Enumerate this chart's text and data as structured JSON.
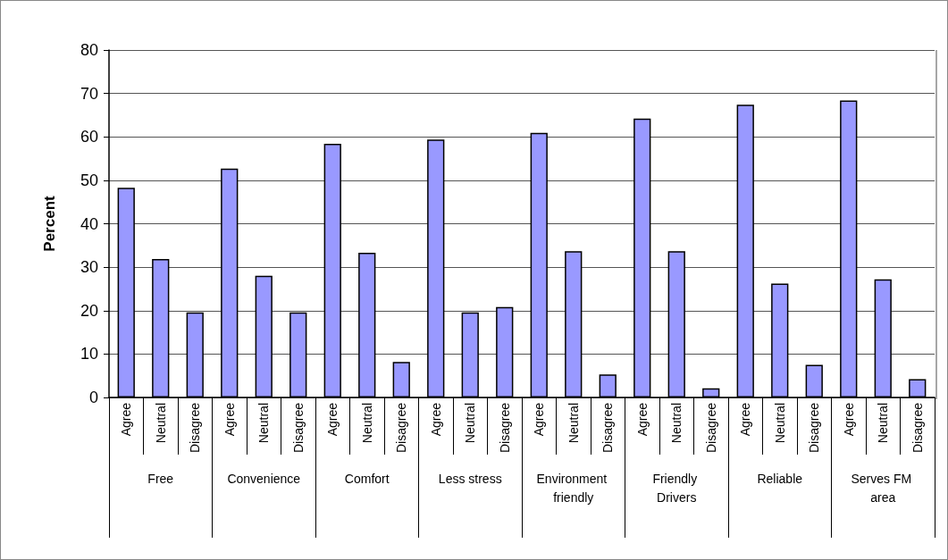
{
  "chart_data": {
    "type": "bar",
    "ylabel": "Percent",
    "categories": [
      "Agree",
      "Neutral",
      "Disagree",
      "Agree",
      "Neutral",
      "Disagree",
      "Agree",
      "Neutral",
      "Disagree",
      "Agree",
      "Neutral",
      "Disagree",
      "Agree",
      "Neutral",
      "Disagree",
      "Agree",
      "Neutral",
      "Disagree",
      "Agree",
      "Neutral",
      "Disagree",
      "Agree",
      "Neutral",
      "Disagree"
    ],
    "values": [
      48.3,
      31.9,
      19.6,
      52.7,
      28.0,
      19.6,
      58.4,
      33.3,
      8.2,
      59.4,
      19.6,
      20.8,
      60.9,
      33.7,
      5.3,
      64.2,
      33.7,
      2.1,
      67.4,
      26.2,
      7.5,
      68.4,
      27.2,
      4.2
    ],
    "color": "#9999ff",
    "annotations": [
      "Free",
      "Convenience",
      "Comfort",
      "Less stress",
      "Environment friendly",
      "Friendly Drivers",
      "Reliable",
      "Serves FM area"
    ],
    "ylim": [
      0,
      80
    ],
    "yticks": [
      0,
      10,
      20,
      30,
      40,
      50,
      60,
      70,
      80
    ],
    "grid": "y"
  }
}
